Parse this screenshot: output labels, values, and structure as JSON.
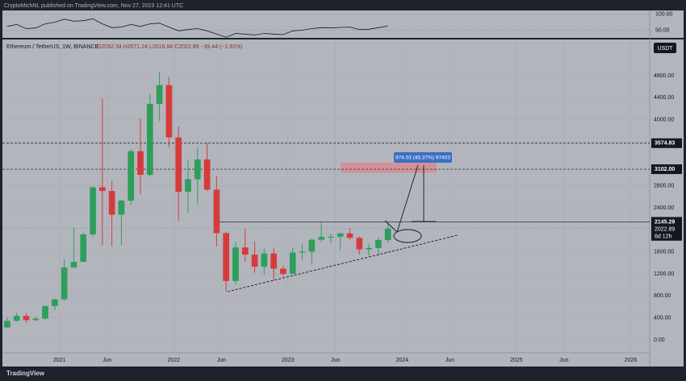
{
  "header": "CryptoMichNL published on TradingView.com, Nov 27, 2023 12:41 UTC",
  "footer": "TradingView",
  "chart_data": {
    "type": "candlestick",
    "legend_text": "Ethereum / TetherUS, 1W, BINANCE",
    "ohlc_text": "O2062.34 H2071.24 L2016.84 C2022.89 −39.44 (−1.91%)",
    "currency": "USDT",
    "up_color": "#2e9e5b",
    "down_color": "#d63b3b",
    "x": [
      "2020-07",
      "2020-08",
      "2020-09",
      "2020-10",
      "2020-11",
      "2020-12",
      "2021-01",
      "2021-02",
      "2021-03",
      "2021-04",
      "2021-05",
      "2021-06",
      "2021-07",
      "2021-08",
      "2021-09",
      "2021-10",
      "2021-11",
      "2021-12",
      "2022-01",
      "2022-02",
      "2022-03",
      "2022-04",
      "2022-05",
      "2022-06",
      "2022-07",
      "2022-08",
      "2022-09",
      "2022-10",
      "2022-11",
      "2022-12",
      "2023-01",
      "2023-02",
      "2023-03",
      "2023-04",
      "2023-05",
      "2023-06",
      "2023-07",
      "2023-08",
      "2023-09",
      "2023-10",
      "2023-11"
    ],
    "open": [
      225,
      345,
      435,
      360,
      386,
      615,
      737,
      1315,
      1418,
      1918,
      2772,
      2707,
      2275,
      2530,
      3430,
      3000,
      4290,
      4630,
      3680,
      2690,
      2920,
      3280,
      2730,
      1940,
      1070,
      1680,
      1550,
      1330,
      1570,
      1295,
      1200,
      1585,
      1605,
      1820,
      1870,
      1875,
      1935,
      1855,
      1645,
      1670,
      1815
    ],
    "high": [
      415,
      490,
      488,
      420,
      620,
      750,
      1475,
      2040,
      1945,
      2790,
      4380,
      2890,
      2550,
      3470,
      4030,
      4460,
      4870,
      4780,
      3880,
      3280,
      3480,
      3580,
      2970,
      1970,
      1780,
      2030,
      1790,
      1660,
      1680,
      1350,
      1680,
      1740,
      1850,
      2140,
      1930,
      1950,
      2030,
      1880,
      1750,
      1865,
      2135
    ],
    "low": [
      220,
      335,
      310,
      335,
      370,
      535,
      715,
      1300,
      1450,
      1880,
      1720,
      1700,
      1720,
      2450,
      2650,
      2970,
      3980,
      3500,
      2160,
      2300,
      2450,
      2710,
      1700,
      880,
      1000,
      1420,
      1220,
      1190,
      1080,
      1150,
      1190,
      1460,
      1370,
      1780,
      1760,
      1630,
      1820,
      1550,
      1530,
      1520,
      1760
    ],
    "close": [
      345,
      435,
      360,
      386,
      615,
      737,
      1315,
      1418,
      1918,
      2772,
      2707,
      2275,
      2530,
      3430,
      3000,
      4290,
      4630,
      3680,
      2690,
      2920,
      3280,
      2730,
      1940,
      1070,
      1680,
      1550,
      1330,
      1570,
      1295,
      1200,
      1585,
      1605,
      1820,
      1870,
      1875,
      1935,
      1855,
      1645,
      1670,
      1815,
      2022.89
    ],
    "countdown": "6d 12h",
    "xlim": [
      "2020-07",
      "2026-03"
    ],
    "xticks": [
      {
        "value": "2021-01",
        "label": "2021"
      },
      {
        "value": "2021-06",
        "label": "Jun"
      },
      {
        "value": "2022-01",
        "label": "2022"
      },
      {
        "value": "2022-06",
        "label": "Jun"
      },
      {
        "value": "2023-01",
        "label": "2023"
      },
      {
        "value": "2023-06",
        "label": "Jun"
      },
      {
        "value": "2024-01",
        "label": "2024"
      },
      {
        "value": "2024-06",
        "label": "Jun"
      },
      {
        "value": "2025-01",
        "label": "2025"
      },
      {
        "value": "2025-06",
        "label": "Jun"
      },
      {
        "value": "2026-01",
        "label": "2026"
      }
    ],
    "ylim": [
      -235,
      5460
    ],
    "yticks": [
      {
        "value": 0,
        "label": "0.00"
      },
      {
        "value": 400,
        "label": "400.00"
      },
      {
        "value": 800,
        "label": "800.00"
      },
      {
        "value": 1200,
        "label": "1200.00"
      },
      {
        "value": 1600,
        "label": "1600.00"
      },
      {
        "value": 2400,
        "label": "2400.00"
      },
      {
        "value": 2800,
        "label": "2800.00"
      },
      {
        "value": 4000,
        "label": "4000.00"
      },
      {
        "value": 4400,
        "label": "4400.00"
      },
      {
        "value": 4800,
        "label": "4800.00"
      }
    ],
    "levels": [
      3574.83,
      {
        "value": 3102,
        "label": "3102.00"
      },
      2145.29
    ],
    "zone": [
      3040,
      3220
    ],
    "measure_label": "974.03 (45.37%) 97403",
    "rsi": [
      62,
      68,
      55,
      57,
      70,
      75,
      85,
      78,
      80,
      86,
      70,
      58,
      60,
      68,
      62,
      70,
      72,
      60,
      48,
      52,
      55,
      48,
      38,
      28,
      40,
      38,
      35,
      40,
      38,
      36,
      48,
      50,
      55,
      58,
      57,
      59,
      60,
      52,
      53,
      58,
      63
    ],
    "rsi_ylim": [
      26,
      112
    ],
    "rsi_yticks": [
      {
        "value": 100,
        "label": "100.00"
      },
      {
        "value": 50,
        "label": "50.00"
      }
    ]
  }
}
